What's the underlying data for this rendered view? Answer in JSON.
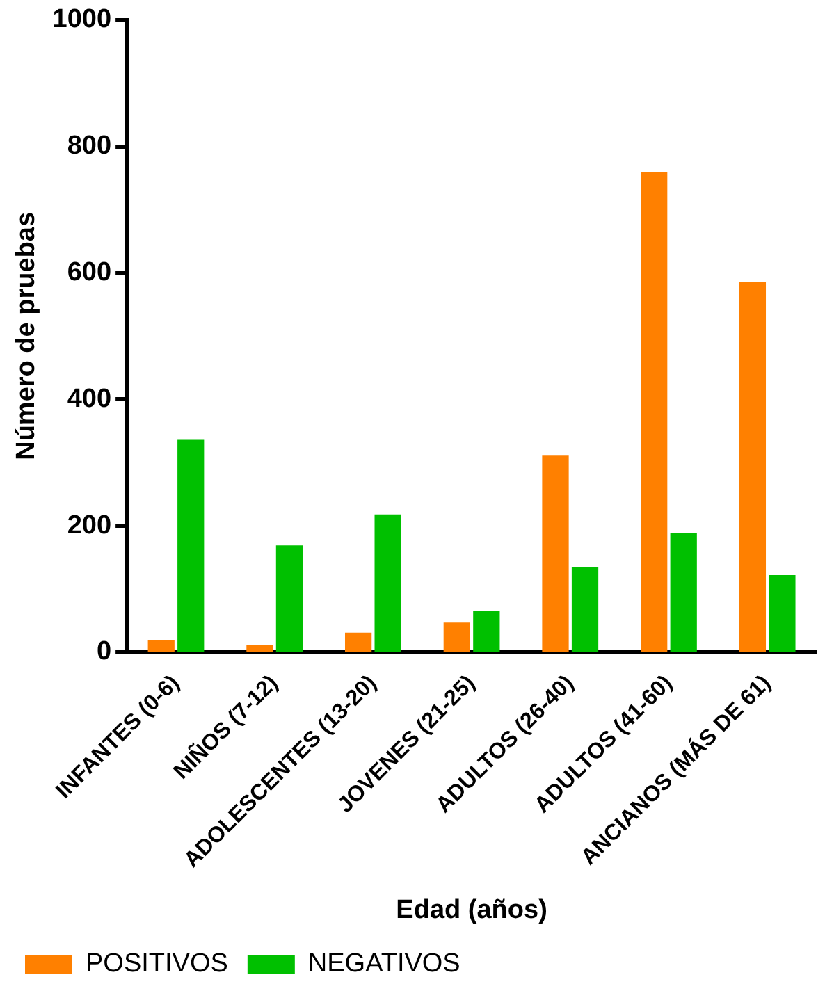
{
  "chart_data": {
    "type": "bar",
    "xlabel": "Edad (años)",
    "ylabel": "Número de pruebas",
    "categories": [
      "INFANTES (0-6)",
      "NIÑOS (7-12)",
      "ADOLESCENTES (13-20)",
      "JOVENES (21-25)",
      "ADULTOS (26-40)",
      "ADULTOS (41-60)",
      "ANCIANOS (MÁS DE 61)"
    ],
    "series": [
      {
        "name": "POSITIVOS",
        "color": "#ff8000",
        "values": [
          19,
          12,
          31,
          47,
          311,
          759,
          585
        ]
      },
      {
        "name": "NEGATIVOS",
        "color": "#00c000",
        "values": [
          336,
          169,
          218,
          66,
          134,
          189,
          122
        ]
      }
    ],
    "ylim": [
      0,
      1000
    ],
    "yticks": [
      0,
      200,
      400,
      600,
      800,
      1000
    ],
    "grid": false,
    "legend": "bottom left"
  }
}
